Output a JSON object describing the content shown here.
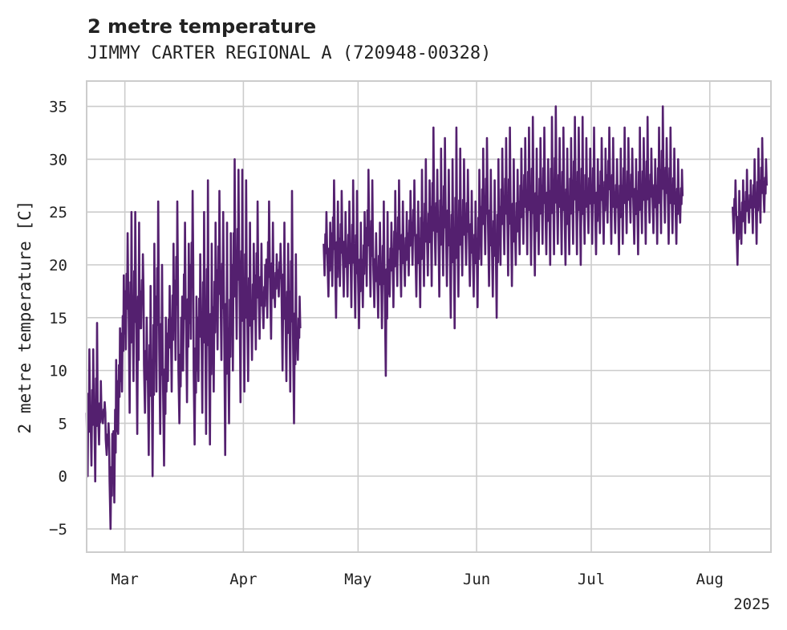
{
  "chart_data": {
    "type": "line",
    "title": "2 metre temperature",
    "subtitle": "JIMMY CARTER REGIONAL A (720948-00328)",
    "ylabel": "2 metre temperature [C]",
    "xlabel": "",
    "x_tick_labels": [
      "Mar",
      "Apr",
      "May",
      "Jun",
      "Jul",
      "Aug"
    ],
    "x_year_label": "2025",
    "xlim": [
      "2025-02-19",
      "2025-08-17"
    ],
    "ylim": [
      -7.2,
      37.4
    ],
    "y_ticks": [
      -5,
      0,
      5,
      10,
      15,
      20,
      25,
      30,
      35
    ],
    "y_tick_labels": [
      "−5",
      "0",
      "5",
      "10",
      "15",
      "20",
      "25",
      "30",
      "35"
    ],
    "grid": true,
    "line_color": "#54206f",
    "series": [
      {
        "segments": [
          {
            "start": "2025-02-19",
            "end": "2025-04-15",
            "daily_min": [
              0,
              1,
              -0.5,
              3,
              5,
              2,
              -5,
              -2.5,
              4,
              8,
              12,
              6,
              9,
              4,
              14,
              6,
              2,
              0,
              8,
              4,
              1,
              9,
              8,
              11,
              5,
              10,
              7,
              13,
              3,
              9,
              6,
              4,
              3,
              8,
              12,
              11,
              2,
              5,
              10,
              13,
              7,
              8,
              9,
              11,
              12,
              13,
              14,
              15,
              13,
              16,
              17,
              10,
              9,
              8,
              5,
              11
            ],
            "daily_max": [
              12,
              12,
              14.5,
              9,
              7,
              5,
              4,
              11,
              14,
              19,
              23,
              25,
              25,
              24,
              21,
              15,
              18,
              22,
              26,
              20,
              15,
              18,
              22,
              26,
              15,
              24,
              22,
              27,
              17,
              21,
              25,
              28,
              22,
              24,
              27,
              25,
              24,
              23,
              30,
              29,
              29,
              28,
              24,
              22,
              26,
              22,
              20,
              26,
              24,
              21,
              22,
              24,
              22,
              27,
              21,
              17
            ]
          },
          {
            "start": "2025-04-22",
            "end": "2025-06-28",
            "daily_min": [
              19,
              17,
              18,
              15,
              18,
              17,
              17,
              16,
              15,
              14,
              16,
              18,
              17,
              16,
              15,
              14,
              9.5,
              17,
              16,
              18,
              17,
              18,
              19,
              20,
              17,
              16,
              18,
              19,
              18,
              20,
              17,
              19,
              18,
              15,
              14,
              17,
              19,
              20,
              18,
              17,
              16,
              20,
              21,
              18,
              17,
              15,
              20,
              21,
              19,
              18,
              20,
              21,
              22,
              21,
              20,
              19,
              21,
              22,
              21,
              20,
              21,
              22,
              21,
              20,
              21,
              22,
              21,
              20
            ],
            "daily_max": [
              25,
              24,
              28,
              26,
              27,
              25,
              26,
              28,
              27,
              24,
              25,
              29,
              28,
              23,
              24,
              26,
              25,
              24,
              27,
              28,
              26,
              25,
              27,
              28,
              26,
              29,
              30,
              28,
              33,
              29,
              31,
              32,
              29,
              30,
              33,
              31,
              30,
              29,
              27,
              26,
              29,
              31,
              32,
              29,
              28,
              30,
              31,
              32,
              33,
              30,
              29,
              31,
              32,
              33,
              34,
              31,
              32,
              33,
              30,
              34,
              35,
              32,
              33,
              31,
              32,
              34,
              33,
              34
            ]
          },
          {
            "start": "2025-06-28",
            "end": "2025-07-24",
            "daily_min": [
              22,
              22,
              23,
              22,
              21,
              23,
              22,
              24,
              22,
              23,
              21,
              22,
              23,
              24,
              22,
              21,
              23,
              22,
              24,
              23,
              22,
              23,
              24,
              22,
              23,
              22,
              24
            ],
            "daily_max": [
              30,
              32,
              31,
              33,
              30,
              32,
              31,
              33,
              32,
              30,
              31,
              33,
              32,
              31,
              30,
              33,
              32,
              34,
              31,
              30,
              33,
              35,
              32,
              33,
              31,
              30,
              29
            ]
          },
          {
            "start": "2025-08-07",
            "end": "2025-08-15",
            "daily_min": [
              23,
              20,
              22,
              23,
              24,
              23,
              22,
              24,
              25
            ],
            "daily_max": [
              28,
              27,
              28,
              29,
              28,
              30,
              31,
              32,
              30
            ]
          }
        ]
      }
    ]
  }
}
